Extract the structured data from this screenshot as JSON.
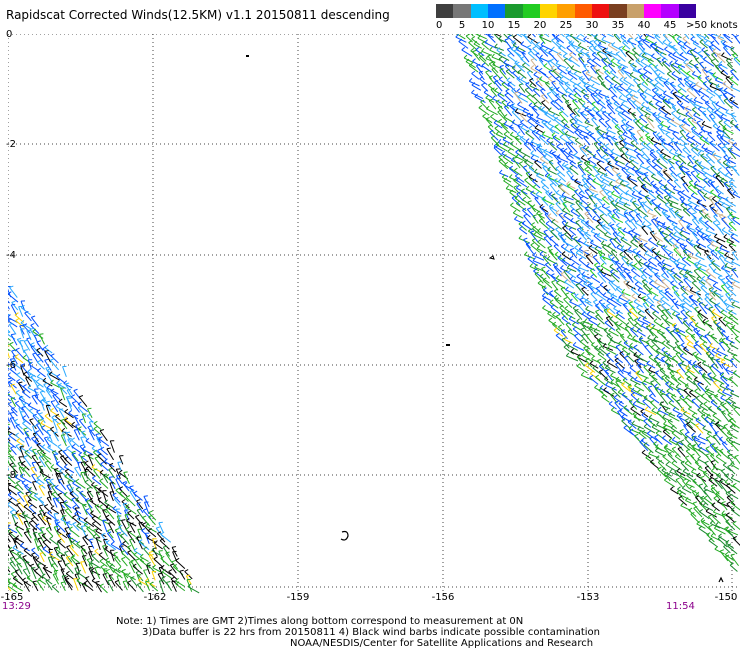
{
  "title": "Rapidscat Corrected Winds(12.5KM) v1.1 20150811 descending",
  "legend": {
    "colors": [
      "#3f3f3f",
      "#777777",
      "#00bfff",
      "#0070ff",
      "#1a9a2e",
      "#22cc22",
      "#ffd400",
      "#ff9f00",
      "#ff5a00",
      "#ee1010",
      "#7a3f20",
      "#c8a06a",
      "#ff00ff",
      "#b400ff",
      "#3a00a0"
    ],
    "ticks": [
      "0",
      "5",
      "10",
      "15",
      "20",
      "25",
      "30",
      "35",
      "40",
      "45",
      ">50 knots"
    ]
  },
  "axes": {
    "y_labels": [
      "0",
      "-2",
      "-4",
      "-6",
      "-8",
      "-10"
    ],
    "x_labels": [
      "-165",
      "-162",
      "-159",
      "-156",
      "-153",
      "-150"
    ]
  },
  "times": {
    "left": "13:29",
    "right": "11:54"
  },
  "notes": {
    "line1": "Note: 1) Times are GMT 2)Times along bottom correspond to measurement at 0N",
    "line2": "3)Data buffer is 22 hrs from 20150811 4) Black wind barbs indicate possible contamination",
    "line3": "NOAA/NESDIS/Center for Satellite Applications and Research"
  }
}
